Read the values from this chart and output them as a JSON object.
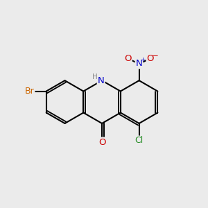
{
  "bg_color": "#ebebeb",
  "bond_color": "#000000",
  "bond_width": 1.5,
  "atom_colors": {
    "N": "#0000cc",
    "O": "#cc0000",
    "Br": "#cc6600",
    "Cl": "#228B22",
    "H": "#888888"
  },
  "font_size": 9.5
}
